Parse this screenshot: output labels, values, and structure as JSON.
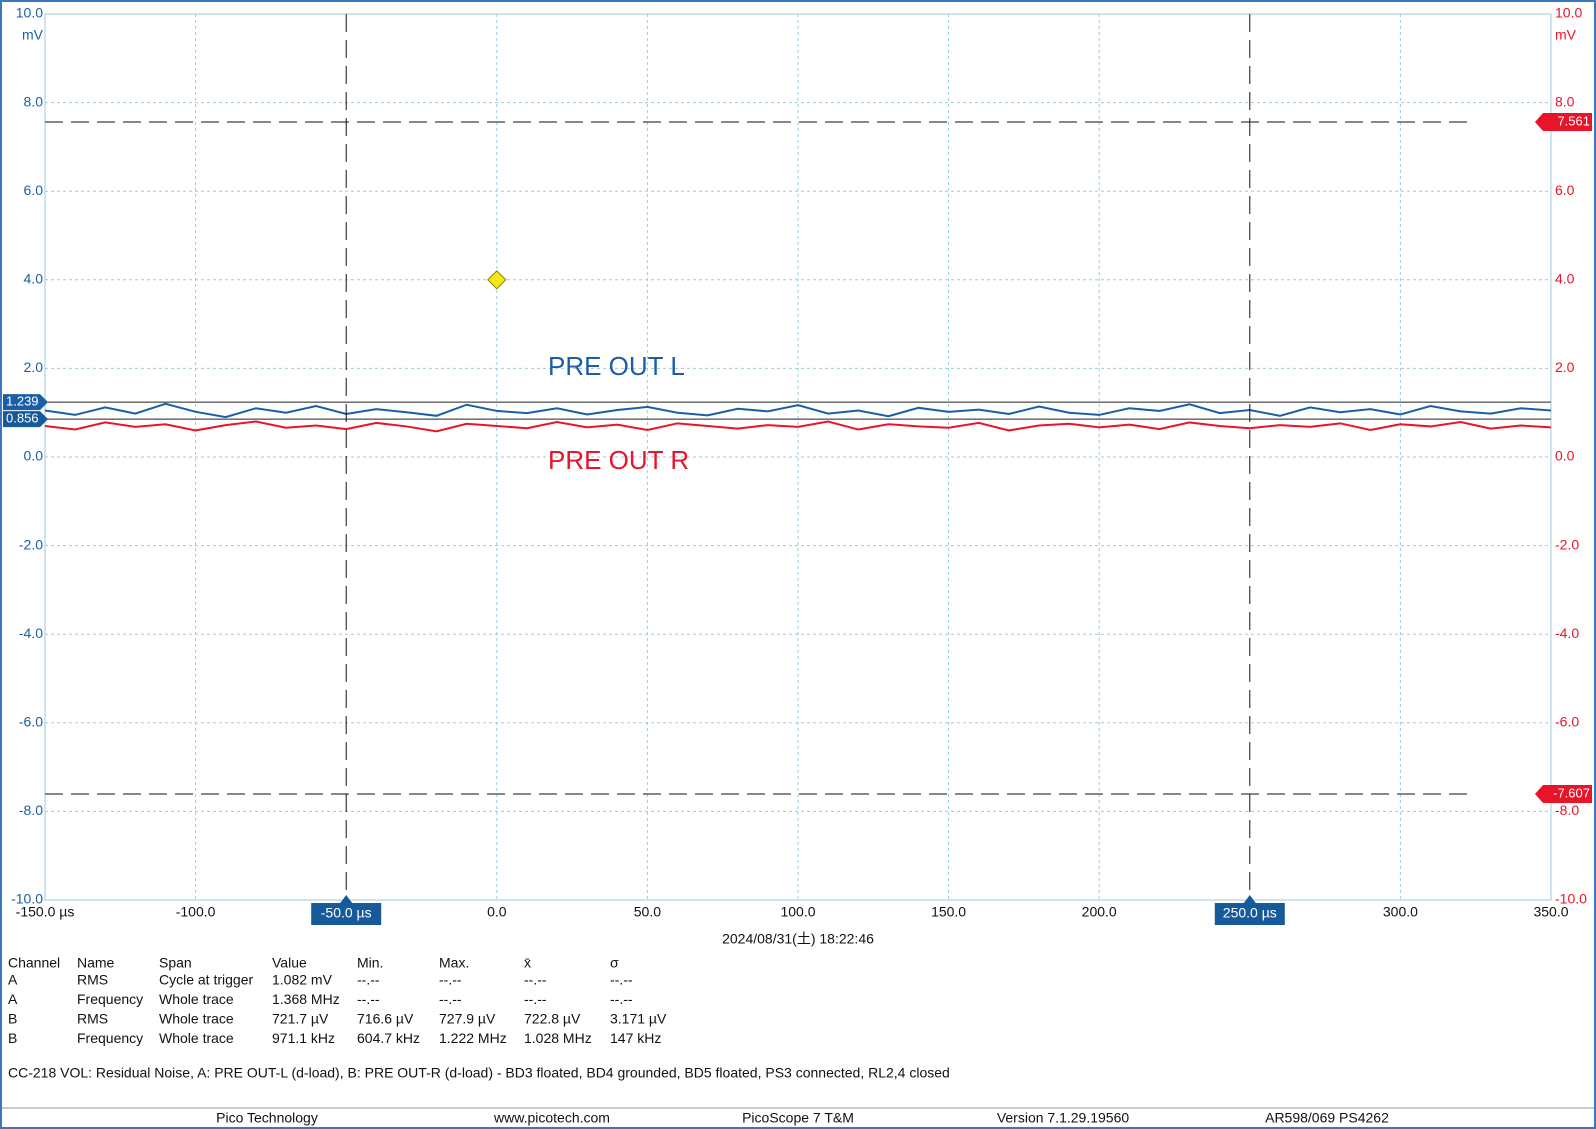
{
  "chart_data": {
    "type": "line",
    "x": [
      -150,
      -140,
      -130,
      -120,
      -110,
      -100,
      -90,
      -80,
      -70,
      -60,
      -50,
      -40,
      -30,
      -20,
      -10,
      0,
      10,
      20,
      30,
      40,
      50,
      60,
      70,
      80,
      90,
      100,
      110,
      120,
      130,
      140,
      150,
      160,
      170,
      180,
      190,
      200,
      210,
      220,
      230,
      240,
      250,
      260,
      270,
      280,
      290,
      300,
      310,
      320,
      330,
      340,
      350
    ],
    "series": [
      {
        "name": "PRE OUT L",
        "color": "#1a5fa6",
        "values": [
          1.05,
          0.95,
          1.12,
          0.98,
          1.2,
          1.02,
          0.9,
          1.1,
          1.0,
          1.15,
          0.97,
          1.08,
          1.01,
          0.93,
          1.18,
          1.04,
          0.99,
          1.1,
          0.96,
          1.06,
          1.13,
          1.0,
          0.94,
          1.09,
          1.03,
          1.17,
          0.98,
          1.05,
          0.92,
          1.11,
          1.02,
          1.07,
          0.97,
          1.14,
          1.0,
          0.95,
          1.1,
          1.04,
          1.19,
          0.99,
          1.06,
          0.93,
          1.12,
          1.01,
          1.08,
          0.96,
          1.15,
          1.03,
          0.98,
          1.1,
          1.05
        ]
      },
      {
        "name": "PRE OUT R",
        "color": "#e8142a",
        "values": [
          0.7,
          0.62,
          0.78,
          0.68,
          0.74,
          0.6,
          0.72,
          0.8,
          0.66,
          0.71,
          0.63,
          0.77,
          0.69,
          0.58,
          0.75,
          0.7,
          0.65,
          0.79,
          0.67,
          0.73,
          0.61,
          0.76,
          0.7,
          0.64,
          0.72,
          0.68,
          0.8,
          0.62,
          0.74,
          0.69,
          0.66,
          0.77,
          0.6,
          0.71,
          0.75,
          0.67,
          0.73,
          0.63,
          0.78,
          0.7,
          0.65,
          0.72,
          0.68,
          0.76,
          0.61,
          0.74,
          0.69,
          0.79,
          0.64,
          0.71,
          0.67
        ]
      }
    ],
    "xlim": [
      -150,
      350
    ],
    "xticks": [
      {
        "value": -150,
        "label": "-150.0 µs"
      },
      {
        "value": -100,
        "label": "-100.0"
      },
      {
        "value": 0,
        "label": "0.0"
      },
      {
        "value": 50,
        "label": "50.0"
      },
      {
        "value": 100,
        "label": "100.0"
      },
      {
        "value": 150,
        "label": "150.0"
      },
      {
        "value": 200,
        "label": "200.0"
      },
      {
        "value": 300,
        "label": "300.0"
      },
      {
        "value": 350,
        "label": "350.0"
      }
    ],
    "ylim": [
      -10,
      10
    ],
    "yticks": [
      {
        "value": -10,
        "label": "-10.0"
      },
      {
        "value": -8,
        "label": "-8.0"
      },
      {
        "value": -6,
        "label": "-6.0"
      },
      {
        "value": -4,
        "label": "-4.0"
      },
      {
        "value": -2,
        "label": "-2.0"
      },
      {
        "value": 0,
        "label": "0.0"
      },
      {
        "value": 2,
        "label": "2.0"
      },
      {
        "value": 4,
        "label": "4.0"
      },
      {
        "value": 6,
        "label": "6.0"
      },
      {
        "value": 8,
        "label": "8.0"
      },
      {
        "value": 10,
        "label": "10.0"
      }
    ],
    "y_unit": "mV",
    "grid": true,
    "time_cursors": [
      {
        "value": -50,
        "label": "-50.0 µs"
      },
      {
        "value": 250,
        "label": "250.0 µs"
      }
    ],
    "level_cursors": [
      7.561,
      -7.607
    ],
    "channel_markers": [
      1.239,
      0.856
    ],
    "trigger": {
      "x": 0,
      "y": 4
    },
    "timestamp": "2024/08/31(土) 18:22:46"
  },
  "table": {
    "header": [
      "Channel",
      "Name",
      "Span",
      "Value",
      "Min.",
      "Max.",
      "x̄",
      "σ"
    ],
    "rows": [
      [
        "A",
        "RMS",
        "Cycle at trigger",
        "1.082 mV",
        "--.--",
        "--.--",
        "--.--",
        "--.--"
      ],
      [
        "A",
        "Frequency",
        "Whole trace",
        "1.368 MHz",
        "--.--",
        "--.--",
        "--.--",
        "--.--"
      ],
      [
        "B",
        "RMS",
        "Whole trace",
        "721.7 µV",
        "716.6 µV",
        "727.9 µV",
        "722.8 µV",
        "3.171 µV"
      ],
      [
        "B",
        "Frequency",
        "Whole trace",
        "971.1 kHz",
        "604.7 kHz",
        "1.222 MHz",
        "1.028 MHz",
        "147 kHz"
      ]
    ]
  },
  "caption": "CC-218 VOL: Residual Noise, A: PRE OUT-L (d-load), B: PRE OUT-R (d-load) - BD3 floated, BD4 grounded, BD5 floated, PS3 connected, RL2,4 closed",
  "footer": [
    "Pico Technology",
    "www.picotech.com",
    "PicoScope 7 T&M",
    "Version 7.1.29.19560",
    "AR598/069 PS4262"
  ]
}
